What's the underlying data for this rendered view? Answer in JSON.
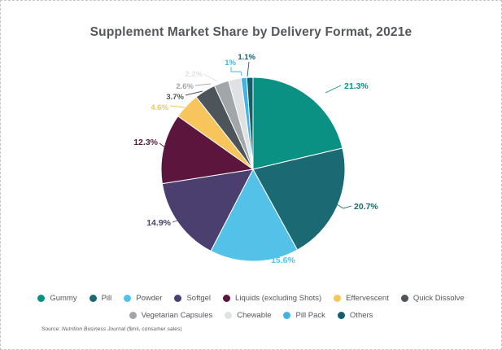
{
  "title": "Supplement Market Share by Delivery Format, 2021e",
  "source": {
    "prefix": "Source: ",
    "journal": "Nutrition Business Journal",
    "suffix": " ($mil, consumer sales)"
  },
  "colors": {
    "text": "#54575C",
    "frame_border": "#C2C6C9",
    "slice_divider": "#FFFFFF"
  },
  "chart_data": {
    "type": "pie",
    "title": "Supplement Market Share by Delivery Format, 2021e",
    "unit": "percent",
    "start_angle_deg": 0,
    "direction": "clockwise",
    "legend_position": "bottom",
    "slices": [
      {
        "label": "Gummy",
        "value": 21.3,
        "display": "21.3%",
        "color": "#0B9183"
      },
      {
        "label": "Pill",
        "value": 20.7,
        "display": "20.7%",
        "color": "#1B6972"
      },
      {
        "label": "Powder",
        "value": 15.6,
        "display": "15.6%",
        "color": "#54C2E8"
      },
      {
        "label": "Softgel",
        "value": 14.9,
        "display": "14.9%",
        "color": "#4B3F70"
      },
      {
        "label": "Liquids (excluding Shots)",
        "value": 12.3,
        "display": "12.3%",
        "color": "#5C163D"
      },
      {
        "label": "Effervescent",
        "value": 4.6,
        "display": "4.6%",
        "color": "#F8C45C"
      },
      {
        "label": "Quick Dissolve",
        "value": 3.7,
        "display": "3.7%",
        "color": "#4D545A"
      },
      {
        "label": "Vegetarian Capsules",
        "value": 2.6,
        "display": "2.6%",
        "color": "#A2A6A9"
      },
      {
        "label": "Chewable",
        "value": 2.2,
        "display": "2.2%",
        "color": "#DFE1E2"
      },
      {
        "label": "Pill Pack",
        "value": 1.0,
        "display": "1%",
        "color": "#44B3E4"
      },
      {
        "label": "Others",
        "value": 1.1,
        "display": "1.1%",
        "color": "#115F6A"
      }
    ],
    "legend_rows": [
      [
        "Gummy",
        "Pill",
        "Powder",
        "Softgel",
        "Liquids (excluding Shots)",
        "Effervescent",
        "Quick Dissolve"
      ],
      [
        "Vegetarian Capsules",
        "Chewable",
        "Pill Pack",
        "Others"
      ]
    ]
  }
}
